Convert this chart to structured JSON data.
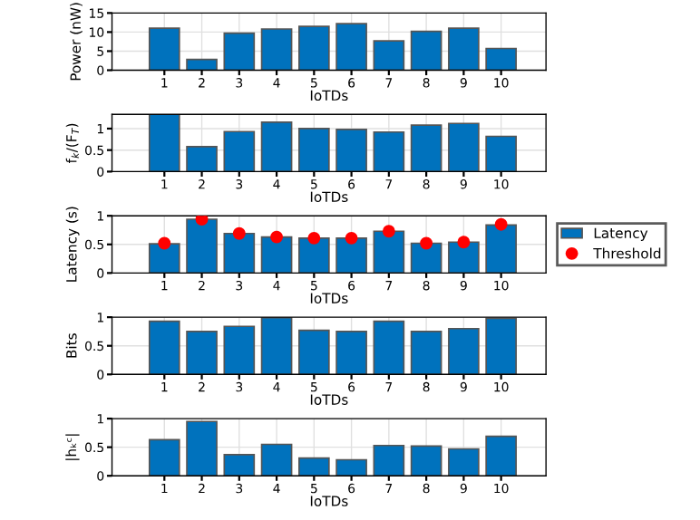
{
  "chart_data": [
    {
      "type": "bar",
      "xlabel": "IoTDs",
      "ylabel": "Power (nW)",
      "categories": [
        "1",
        "2",
        "3",
        "4",
        "5",
        "6",
        "7",
        "8",
        "9",
        "10"
      ],
      "values": [
        11,
        2.8,
        9.7,
        10.8,
        11.5,
        12.2,
        7.7,
        10.2,
        11,
        5.7
      ],
      "color": "#0072bd",
      "ylim": [
        0,
        15
      ],
      "yticks": [
        0,
        5,
        10,
        15
      ],
      "grid": true
    },
    {
      "type": "bar",
      "xlabel": "IoTDs",
      "ylabel": "f$_{k}$/(F$_{T}$)",
      "categories": [
        "1",
        "2",
        "3",
        "4",
        "5",
        "6",
        "7",
        "8",
        "9",
        "10"
      ],
      "values": [
        1.33,
        0.58,
        0.93,
        1.15,
        1.0,
        0.98,
        0.92,
        1.08,
        1.12,
        0.82
      ],
      "color": "#0072bd",
      "ylim": [
        0,
        1.33
      ],
      "yticks": [
        0,
        0.5,
        1
      ],
      "grid": true
    },
    {
      "type": "bar",
      "xlabel": "IoTDs",
      "ylabel": "Latency (s)",
      "categories": [
        "1",
        "2",
        "3",
        "4",
        "5",
        "6",
        "7",
        "8",
        "9",
        "10"
      ],
      "series": [
        {
          "name": "Latency",
          "type": "bar",
          "color": "#0072bd",
          "values": [
            0.51,
            0.94,
            0.69,
            0.63,
            0.61,
            0.61,
            0.73,
            0.52,
            0.54,
            0.84
          ]
        },
        {
          "name": "Threshold",
          "type": "scatter",
          "color": "#ff0000",
          "values": [
            0.52,
            0.94,
            0.69,
            0.63,
            0.61,
            0.61,
            0.73,
            0.52,
            0.54,
            0.85
          ]
        }
      ],
      "marker": "circle",
      "legend": "right",
      "ylim": [
        0,
        1
      ],
      "yticks": [
        0,
        0.5,
        1
      ],
      "grid": true
    },
    {
      "type": "bar",
      "xlabel": "IoTDs",
      "ylabel": "Bits",
      "categories": [
        "1",
        "2",
        "3",
        "4",
        "5",
        "6",
        "7",
        "8",
        "9",
        "10"
      ],
      "values": [
        0.93,
        0.75,
        0.84,
        0.99,
        0.77,
        0.75,
        0.93,
        0.75,
        0.8,
        0.98
      ],
      "color": "#0072bd",
      "ylim": [
        0,
        1
      ],
      "yticks": [
        0,
        0.5,
        1
      ],
      "grid": true
    },
    {
      "type": "bar",
      "xlabel": "IoTDs",
      "ylabel": "|hₖᶜ|",
      "categories": [
        "1",
        "2",
        "3",
        "4",
        "5",
        "6",
        "7",
        "8",
        "9",
        "10"
      ],
      "values": [
        0.63,
        0.95,
        0.37,
        0.55,
        0.31,
        0.28,
        0.53,
        0.52,
        0.47,
        0.69
      ],
      "color": "#0072bd",
      "ylim": [
        0,
        1
      ],
      "yticks": [
        0,
        0.5,
        1
      ],
      "grid": true
    }
  ]
}
